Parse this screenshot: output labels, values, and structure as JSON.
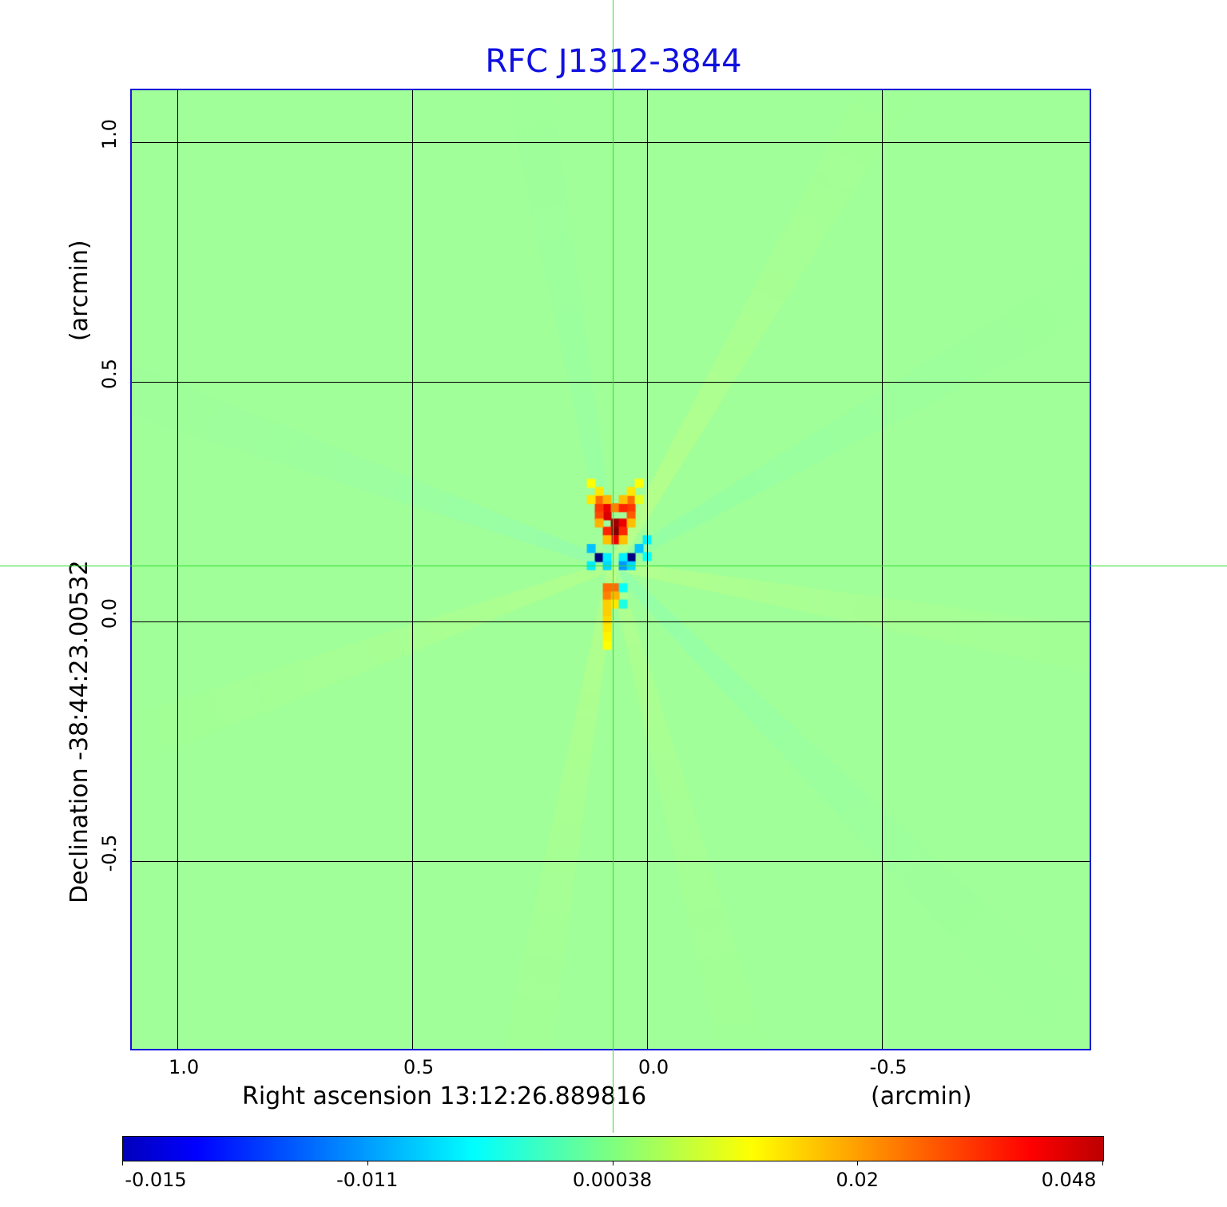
{
  "chart_data": {
    "type": "heatmap",
    "title": "RFC J1312-3844",
    "xlabel": "Right ascension  13:12:26.889816",
    "xunit": "(arcmin)",
    "ylabel": "Declination  -38:44:23.00532",
    "yunit": "(arcmin)",
    "xlim": [
      1.097,
      -0.942
    ],
    "ylim": [
      -0.892,
      1.108
    ],
    "x_ticks": [
      {
        "v": 1.0,
        "label": "1.0"
      },
      {
        "v": 0.5,
        "label": "0.5"
      },
      {
        "v": 0.0,
        "label": "0.0"
      },
      {
        "v": -0.5,
        "label": "-0.5"
      }
    ],
    "y_ticks": [
      {
        "v": 1.0,
        "label": "1.0"
      },
      {
        "v": 0.5,
        "label": "0.5"
      },
      {
        "v": 0.0,
        "label": "0.0"
      },
      {
        "v": -0.5,
        "label": "-0.5"
      }
    ],
    "grid": true,
    "crosshair": {
      "ra": 0.073,
      "dec": 0.117
    },
    "colormap": "jet",
    "colorbar_ticks": [
      "-0.015",
      "-0.011",
      "0.00038",
      "0.02",
      "0.048"
    ],
    "colorbar_values": [
      -0.015,
      -0.011,
      0.00038,
      0.02,
      0.048
    ],
    "background_value": 0.00038,
    "cell_size_arcmin": 0.017,
    "cells": [
      {
        "ra": 0.102,
        "dec": 0.133,
        "v": -0.015
      },
      {
        "ra": 0.034,
        "dec": 0.133,
        "v": -0.015
      },
      {
        "ra": 0.068,
        "dec": 0.188,
        "v": 0.048
      },
      {
        "ra": 0.068,
        "dec": 0.205,
        "v": 0.045
      },
      {
        "ra": 0.085,
        "dec": 0.22,
        "v": 0.038
      },
      {
        "ra": 0.051,
        "dec": 0.205,
        "v": 0.036
      },
      {
        "ra": 0.085,
        "dec": 0.237,
        "v": 0.036
      },
      {
        "ra": 0.068,
        "dec": 0.17,
        "v": 0.036
      },
      {
        "ra": 0.085,
        "dec": 0.188,
        "v": 0.03
      },
      {
        "ra": 0.051,
        "dec": 0.188,
        "v": 0.03
      },
      {
        "ra": 0.102,
        "dec": 0.237,
        "v": 0.028
      },
      {
        "ra": 0.034,
        "dec": 0.237,
        "v": 0.028
      },
      {
        "ra": 0.102,
        "dec": 0.22,
        "v": 0.026
      },
      {
        "ra": 0.034,
        "dec": 0.22,
        "v": 0.024
      },
      {
        "ra": 0.068,
        "dec": 0.237,
        "v": 0.02
      },
      {
        "ra": 0.051,
        "dec": 0.237,
        "v": 0.03
      },
      {
        "ra": 0.102,
        "dec": 0.254,
        "v": 0.022
      },
      {
        "ra": 0.034,
        "dec": 0.254,
        "v": 0.022
      },
      {
        "ra": 0.085,
        "dec": 0.254,
        "v": 0.016
      },
      {
        "ra": 0.051,
        "dec": 0.254,
        "v": 0.015
      },
      {
        "ra": 0.102,
        "dec": 0.205,
        "v": 0.016
      },
      {
        "ra": 0.034,
        "dec": 0.205,
        "v": 0.015
      },
      {
        "ra": 0.085,
        "dec": 0.17,
        "v": 0.015
      },
      {
        "ra": 0.051,
        "dec": 0.17,
        "v": 0.015
      },
      {
        "ra": 0.102,
        "dec": 0.271,
        "v": 0.012
      },
      {
        "ra": 0.034,
        "dec": 0.271,
        "v": 0.012
      },
      {
        "ra": 0.119,
        "dec": 0.288,
        "v": 0.01
      },
      {
        "ra": 0.017,
        "dec": 0.288,
        "v": 0.01
      },
      {
        "ra": 0.119,
        "dec": 0.254,
        "v": 0.012
      },
      {
        "ra": 0.017,
        "dec": 0.254,
        "v": 0.008
      },
      {
        "ra": 0.119,
        "dec": 0.152,
        "v": -0.008
      },
      {
        "ra": 0.017,
        "dec": 0.152,
        "v": -0.008
      },
      {
        "ra": 0.085,
        "dec": 0.133,
        "v": -0.006
      },
      {
        "ra": 0.051,
        "dec": 0.133,
        "v": -0.006
      },
      {
        "ra": 0.085,
        "dec": 0.116,
        "v": -0.007
      },
      {
        "ra": 0.051,
        "dec": 0.116,
        "v": -0.01
      },
      {
        "ra": 0.119,
        "dec": 0.116,
        "v": -0.006
      },
      {
        "ra": 0.034,
        "dec": 0.116,
        "v": -0.007
      },
      {
        "ra": 0.0,
        "dec": 0.17,
        "v": -0.006
      },
      {
        "ra": 0.0,
        "dec": 0.135,
        "v": -0.005
      },
      {
        "ra": 0.085,
        "dec": 0.07,
        "v": 0.022
      },
      {
        "ra": 0.068,
        "dec": 0.07,
        "v": 0.022
      },
      {
        "ra": 0.085,
        "dec": 0.053,
        "v": 0.02
      },
      {
        "ra": 0.068,
        "dec": 0.053,
        "v": 0.016
      },
      {
        "ra": 0.085,
        "dec": 0.036,
        "v": 0.014
      },
      {
        "ra": 0.068,
        "dec": 0.036,
        "v": 0.012
      },
      {
        "ra": 0.085,
        "dec": 0.019,
        "v": 0.014
      },
      {
        "ra": 0.085,
        "dec": 0.002,
        "v": 0.013
      },
      {
        "ra": 0.085,
        "dec": -0.015,
        "v": 0.012
      },
      {
        "ra": 0.085,
        "dec": -0.032,
        "v": 0.011
      },
      {
        "ra": 0.085,
        "dec": -0.05,
        "v": 0.01
      },
      {
        "ra": 0.051,
        "dec": 0.07,
        "v": -0.005
      },
      {
        "ra": 0.051,
        "dec": 0.036,
        "v": -0.004
      }
    ]
  }
}
